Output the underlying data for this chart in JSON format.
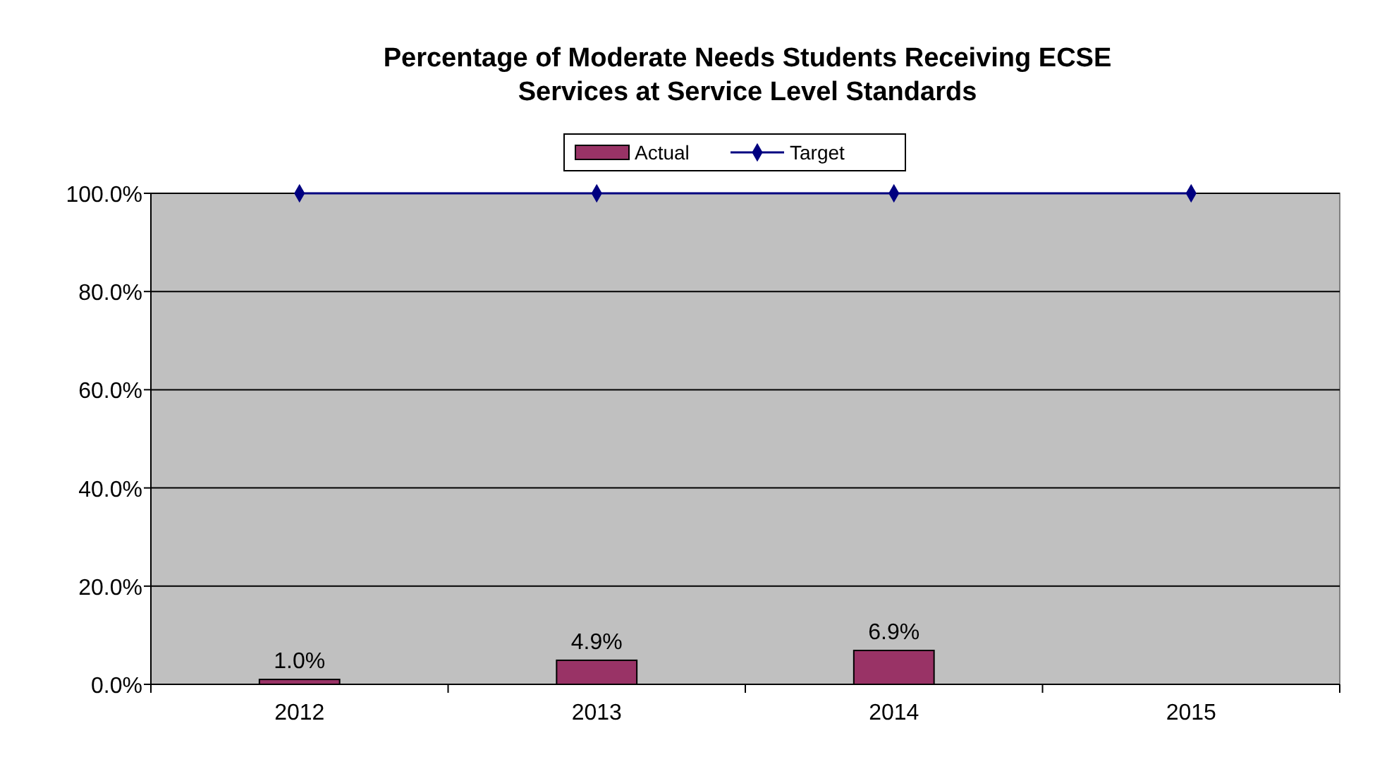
{
  "chart_data": {
    "type": "bar",
    "title": "Percentage of Moderate Needs Students Receiving ECSE\nServices at Service Level Standards",
    "categories": [
      "2012",
      "2013",
      "2014",
      "2015"
    ],
    "series": [
      {
        "name": "Actual",
        "color": "#993366",
        "values": [
          1.0,
          4.9,
          6.9,
          null
        ],
        "value_labels": [
          "1.0%",
          "4.9%",
          "6.9%",
          null
        ]
      },
      {
        "name": "Target",
        "type": "line",
        "color": "#000080",
        "values": [
          100,
          100,
          100,
          100
        ],
        "marker": "diamond"
      }
    ],
    "ylim": [
      0,
      100
    ],
    "yticks": [
      {
        "value": 0,
        "label": "0.0%"
      },
      {
        "value": 20,
        "label": "20.0%"
      },
      {
        "value": 40,
        "label": "40.0%"
      },
      {
        "value": 60,
        "label": "60.0%"
      },
      {
        "value": 80,
        "label": "80.0%"
      },
      {
        "value": 100,
        "label": "100.0%"
      }
    ],
    "grid": "y",
    "legend": "top"
  }
}
